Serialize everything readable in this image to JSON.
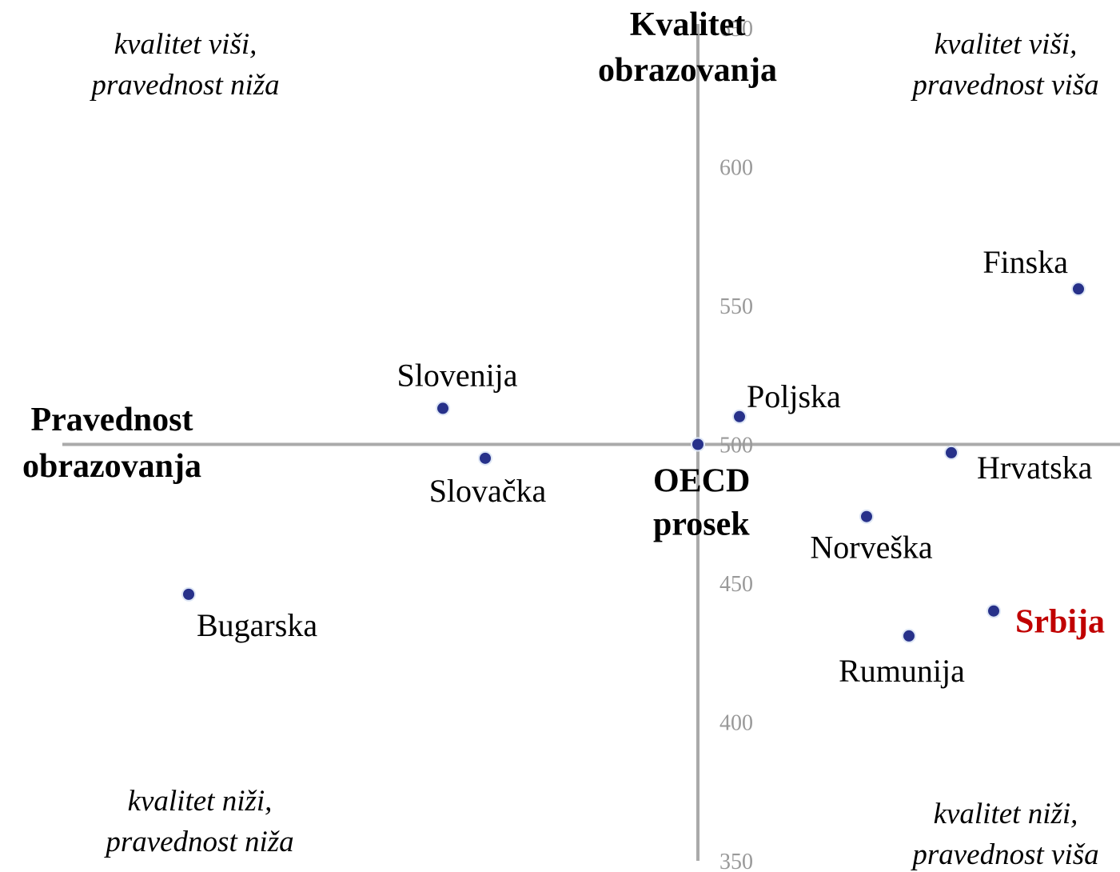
{
  "chart_data": {
    "type": "scatter",
    "title": [
      "Kvalitet",
      "obrazovanja"
    ],
    "x_label": [
      "Pravednost",
      "obrazovanja"
    ],
    "annotations": [
      [
        "kvalitet viši,",
        "pravednost niža"
      ],
      [
        "kvalitet viši,",
        "pravednost viša"
      ],
      [
        "kvalitet niži,",
        "pravednost niža"
      ],
      [
        "kvalitet niži,",
        "pravednost viša"
      ]
    ],
    "labels": [
      [
        "Finska"
      ],
      [
        "Slovenija"
      ],
      [
        "Slovačka"
      ],
      [
        "OECD",
        "prosek"
      ],
      [
        "Poljska"
      ],
      [
        "Hrvatska"
      ],
      [
        "Norveška"
      ],
      [
        "Srbija"
      ],
      [
        "Rumunija"
      ],
      [
        "Bugarska"
      ]
    ],
    "label_colors": [
      "#000000",
      "#000000",
      "#000000",
      "#000000",
      "#000000",
      "#000000",
      "#000000",
      "#c00000",
      "#000000",
      "#000000"
    ],
    "label_bold": [
      false,
      false,
      false,
      true,
      false,
      false,
      false,
      true,
      false,
      false
    ],
    "x": [
      47.6,
      -31.9,
      -26.6,
      0,
      5.2,
      31.7,
      21.1,
      37,
      26.4,
      -63.7
    ],
    "values": [
      556,
      513,
      495,
      500,
      510,
      497,
      474,
      440,
      431,
      446
    ],
    "color": "#27318a",
    "xlim": [
      -79.5,
      52.8
    ],
    "ylim": [
      350,
      650
    ],
    "yticks": [
      350,
      400,
      450,
      500,
      550,
      600,
      650
    ]
  }
}
